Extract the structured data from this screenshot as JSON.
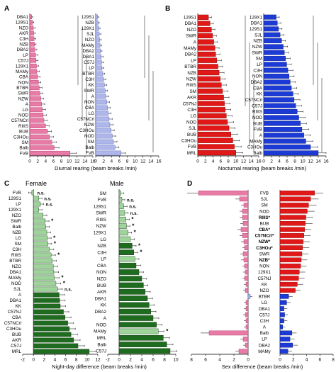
{
  "colors": {
    "pink": "#e87aa6",
    "pinkEdge": "#b03266",
    "lav": "#aeb6ea",
    "lavEdge": "#5562b8",
    "red": "#e01818",
    "redEdge": "#8a0000",
    "blue": "#1c3bd6",
    "blueEdge": "#0a1a78",
    "darkGreen": "#1f6b1f",
    "lightGreen": "#9ed49a",
    "greenEdge": "#0f3a0f"
  },
  "chart_data": [
    {
      "panel": "A",
      "type": "bar",
      "orientation": "horizontal",
      "xlabel": "Diurnal rearing (beam breaks /min)",
      "ticks": [
        0,
        2,
        4,
        6,
        8,
        10,
        12,
        14,
        16
      ],
      "series": [
        {
          "name": "Female",
          "categories": [
            "DBA1",
            "129S1",
            "NZO",
            "AKR",
            "C3H",
            "NZB",
            "DBA2",
            "LP",
            "C57J",
            "129X1",
            "MAMy",
            "CBA",
            "NON",
            "BTBR",
            "SWR",
            "NZW",
            "A",
            "LG",
            "NOD",
            "C57NCrl",
            "RIIIS",
            "BUB",
            "C3HOu",
            "SM",
            "Balb",
            "FVB"
          ],
          "values": [
            0.5,
            0.7,
            0.9,
            1.0,
            1.1,
            1.2,
            1.3,
            1.5,
            1.6,
            1.7,
            1.8,
            2.0,
            2.2,
            2.4,
            2.6,
            2.8,
            3.0,
            3.2,
            3.4,
            3.6,
            4.0,
            4.5,
            5.0,
            5.6,
            6.2,
            10.2
          ],
          "errors": [
            0.3,
            0.3,
            0.4,
            0.4,
            0.4,
            0.4,
            0.5,
            0.5,
            0.5,
            0.5,
            0.6,
            0.6,
            0.6,
            0.7,
            0.7,
            0.7,
            0.8,
            0.8,
            0.8,
            0.8,
            0.9,
            1.0,
            1.0,
            1.1,
            1.2,
            1.6
          ]
        },
        {
          "name": "Male",
          "categories": [
            "129S1",
            "NZB",
            "129X1",
            "SJL",
            "NZO",
            "MAMy",
            "DBA2",
            "DBA1",
            "C57J",
            "LP",
            "BTBR",
            "C3H",
            "KK",
            "SWR",
            "A",
            "NON",
            "CBA",
            "LG",
            "C57NCrl",
            "NZW",
            "C3HOu",
            "NOD",
            "SM",
            "Balb",
            "FVB"
          ],
          "values": [
            0.5,
            0.6,
            0.8,
            0.9,
            1.0,
            1.1,
            1.2,
            1.4,
            1.5,
            1.6,
            1.8,
            2.0,
            2.2,
            2.4,
            2.6,
            2.8,
            3.0,
            3.2,
            3.4,
            3.6,
            3.9,
            4.2,
            4.5,
            4.9,
            6.4
          ],
          "errors": [
            0.3,
            0.3,
            0.3,
            0.4,
            0.4,
            0.4,
            0.4,
            0.5,
            0.5,
            0.5,
            0.5,
            0.6,
            0.6,
            0.6,
            0.7,
            0.7,
            0.7,
            0.7,
            0.8,
            0.8,
            0.8,
            0.9,
            0.9,
            1.0,
            1.2
          ]
        }
      ]
    },
    {
      "panel": "B",
      "type": "bar",
      "orientation": "horizontal",
      "xlabel": "Nocturnal rearing (beam breaks /min)",
      "ticks": [
        0,
        2,
        4,
        6,
        8,
        10,
        12,
        14,
        16
      ],
      "series": [
        {
          "name": "Female",
          "categories": [
            "129S1",
            "DBA1",
            "NZO",
            "SWR",
            "A",
            "MAMy",
            "DBA2",
            "LP",
            "BTBR",
            "NZB",
            "NZW",
            "RIIIS",
            "SM",
            "AKR",
            "C57NJ",
            "C3H",
            "LG",
            "NOD",
            "SJL",
            "BUB",
            "C3HOu",
            "FVB",
            "MRL"
          ],
          "values": [
            2.8,
            3.2,
            3.6,
            3.9,
            4.2,
            4.5,
            4.7,
            5.0,
            5.3,
            5.6,
            5.9,
            6.2,
            6.5,
            6.8,
            7.0,
            7.2,
            7.5,
            7.8,
            8.2,
            8.7,
            9.2,
            9.6,
            10.0
          ],
          "errors": [
            0.8,
            0.9,
            0.9,
            1.0,
            1.0,
            1.1,
            1.1,
            1.2,
            1.2,
            1.3,
            1.3,
            1.3,
            1.4,
            1.4,
            1.5,
            1.5,
            1.5,
            1.6,
            1.6,
            1.7,
            1.7,
            1.8,
            1.8
          ]
        },
        {
          "name": "Male",
          "categories": [
            "129X1",
            "DBA1",
            "129S1",
            "SJL",
            "NZB",
            "NZW",
            "SWR",
            "SM",
            "LP",
            "C3H",
            "NON",
            "DBA2",
            "CBA",
            "KK",
            "C57NCrl",
            "C57J",
            "RIIIS",
            "NOD",
            "BUB",
            "FVB",
            "A",
            "MAMy",
            "C3HOu",
            "Balb"
          ],
          "values": [
            3.2,
            3.5,
            3.8,
            4.2,
            4.6,
            5.0,
            5.3,
            5.6,
            5.9,
            6.2,
            6.5,
            6.8,
            7.1,
            7.5,
            7.8,
            8.2,
            8.6,
            9.0,
            9.4,
            9.8,
            10.3,
            10.8,
            12.0,
            14.0
          ],
          "errors": [
            0.8,
            0.9,
            0.9,
            1.0,
            1.0,
            1.1,
            1.1,
            1.2,
            1.2,
            1.3,
            1.3,
            1.3,
            1.4,
            1.4,
            1.5,
            1.5,
            1.5,
            1.6,
            1.6,
            1.7,
            1.7,
            1.8,
            1.9,
            2.0
          ]
        }
      ]
    },
    {
      "panel": "C",
      "type": "bar",
      "orientation": "horizontal",
      "xlabel": "Night-day difference (beam breaks /min)",
      "ticks": [
        -2,
        0,
        2,
        4,
        6,
        8,
        10,
        12
      ],
      "series": [
        {
          "name": "Female",
          "categories": [
            "FVB",
            "129S1",
            "LP",
            "129X1",
            "NZO",
            "SWR",
            "Balb",
            "NZB",
            "LG",
            "SM",
            "C3H",
            "RIIIS",
            "BTBR",
            "NZO",
            "DBA1",
            "MAMy",
            "NOD",
            "SJL",
            "A",
            "DBA1",
            "KK",
            "C57NJ",
            "CBA",
            "C57NCrl",
            "C3HOu",
            "BUB",
            "AKR",
            "C57J",
            "MRL"
          ],
          "values": [
            -0.3,
            1.0,
            1.3,
            1.0,
            1.8,
            2.2,
            2.3,
            2.5,
            2.6,
            2.7,
            3.0,
            3.3,
            3.5,
            3.7,
            3.8,
            3.9,
            4.2,
            4.5,
            4.8,
            4.9,
            5.0,
            5.6,
            5.9,
            6.4,
            6.7,
            7.0,
            7.5,
            8.3,
            10.4
          ],
          "errors": [
            0.6,
            0.6,
            0.6,
            0.6,
            0.7,
            0.7,
            0.7,
            0.7,
            0.7,
            0.7,
            0.8,
            0.8,
            0.8,
            0.8,
            0.9,
            0.9,
            0.9,
            0.9,
            1.0,
            1.0,
            1.0,
            1.0,
            1.1,
            1.1,
            1.1,
            1.2,
            1.2,
            1.2,
            1.3
          ],
          "significance": [
            "n.s.",
            "n.s.",
            "n.s.",
            "",
            "",
            "*",
            "",
            "",
            "*",
            "*",
            "",
            "*",
            "",
            "",
            "",
            "*",
            "*",
            "n.s.",
            "",
            "",
            "",
            "",
            "",
            "",
            "",
            "",
            "",
            "",
            ""
          ],
          "shade": [
            "light",
            "light",
            "light",
            "light",
            "light",
            "light",
            "light",
            "light",
            "light",
            "light",
            "light",
            "light",
            "light",
            "light",
            "light",
            "light",
            "light",
            "light",
            "dark",
            "dark",
            "dark",
            "dark",
            "dark",
            "dark",
            "dark",
            "dark",
            "dark",
            "dark",
            "dark"
          ]
        },
        {
          "name": "Male",
          "categories": [
            "SM",
            "FVB",
            "129S1",
            "SWR",
            "RIIIS",
            "NZW",
            "129X1",
            "LG",
            "NZB",
            "C3H",
            "LP",
            "CBA",
            "NON",
            "NZO",
            "BUB",
            "AKR",
            "DBA1",
            "KK",
            "DBA2",
            "A",
            "NOD",
            "MAMy",
            "MRL",
            "Balb",
            "C57J"
          ],
          "values": [
            0.3,
            0.5,
            0.8,
            1.0,
            1.2,
            1.3,
            1.6,
            2.0,
            2.3,
            2.6,
            2.8,
            3.0,
            3.5,
            4.0,
            4.3,
            4.6,
            5.0,
            5.3,
            5.6,
            6.0,
            6.6,
            6.9,
            7.8,
            8.4,
            9.0
          ],
          "errors": [
            0.5,
            0.5,
            0.6,
            0.6,
            0.6,
            0.6,
            0.6,
            0.7,
            0.7,
            0.7,
            0.7,
            0.8,
            0.8,
            0.8,
            0.8,
            0.9,
            0.9,
            0.9,
            0.9,
            1.0,
            1.0,
            1.0,
            1.1,
            1.1,
            1.2
          ],
          "significance": [
            "",
            "n.s.",
            "n.s.",
            "n.s.",
            "*",
            "*",
            "*",
            "",
            "*",
            "*",
            "",
            "",
            "",
            "",
            "",
            "",
            "",
            "",
            "",
            "",
            "",
            "*",
            "",
            "",
            ""
          ],
          "shade": [
            "light",
            "light",
            "light",
            "light",
            "light",
            "light",
            "light",
            "light",
            "dark",
            "dark",
            "light",
            "dark",
            "dark",
            "dark",
            "dark",
            "dark",
            "dark",
            "dark",
            "dark",
            "dark",
            "dark",
            "light",
            "dark",
            "dark",
            "dark"
          ]
        }
      ]
    },
    {
      "panel": "D",
      "type": "bar",
      "orientation": "horizontal-diverging",
      "xlabel": "Sex difference (beam breaks /min)",
      "ticks_left": [
        8,
        6,
        4,
        2,
        0
      ],
      "ticks_right": [
        0,
        2,
        4,
        6,
        8
      ],
      "categories": [
        "FVB",
        "SJL",
        "SM",
        "NOD",
        "RIIIS*",
        "BUB",
        "CBA*",
        "C57NCrl*",
        "NZW*",
        "C3HOu*",
        "SWR",
        "NZB*",
        "NON",
        "129X1",
        "C57NJ",
        "KK",
        "NZO",
        "BTBR",
        "LG",
        "DBA1",
        "C57J",
        "C3H",
        "A",
        "Balb",
        "LP",
        "DBA2",
        "MAMy"
      ],
      "bold": [
        false,
        false,
        false,
        false,
        true,
        false,
        true,
        true,
        true,
        true,
        false,
        true,
        false,
        false,
        false,
        false,
        false,
        false,
        false,
        false,
        false,
        false,
        false,
        false,
        false,
        false,
        false
      ],
      "day_values": [
        -7.0,
        -1.2,
        -0.6,
        -0.8,
        -0.8,
        -0.7,
        -1.0,
        -0.8,
        -0.6,
        -0.5,
        -0.7,
        -0.6,
        -0.5,
        -0.4,
        -0.5,
        -0.3,
        -0.4,
        0.3,
        -0.3,
        -0.3,
        -0.4,
        -0.3,
        -0.3,
        -5.5,
        -0.7,
        -0.4,
        -1.3
      ],
      "day_errors": [
        1.6,
        0.6,
        0.4,
        0.4,
        0.4,
        0.4,
        0.5,
        0.4,
        0.4,
        0.3,
        0.4,
        0.4,
        0.3,
        0.3,
        0.3,
        0.3,
        0.3,
        0.3,
        0.3,
        0.3,
        0.3,
        0.3,
        0.3,
        1.2,
        0.4,
        0.3,
        0.5
      ],
      "night_values": [
        5.2,
        4.6,
        4.3,
        4.1,
        3.9,
        3.8,
        3.7,
        3.6,
        3.5,
        3.4,
        3.3,
        3.2,
        3.1,
        2.9,
        2.8,
        2.6,
        2.3,
        1.3,
        1.0,
        0.6,
        0.7,
        0.6,
        0.4,
        1.8,
        1.5,
        1.9,
        1.2
      ],
      "night_errors": [
        1.3,
        1.2,
        1.2,
        1.1,
        1.1,
        1.1,
        1.0,
        1.0,
        1.0,
        1.0,
        1.0,
        0.9,
        0.9,
        0.9,
        0.9,
        0.9,
        0.8,
        0.6,
        0.6,
        0.5,
        0.5,
        0.5,
        0.4,
        0.7,
        0.7,
        0.8,
        0.6
      ]
    }
  ],
  "panel_labels": {
    "a": "A",
    "b": "B",
    "c": "C",
    "d": "D"
  },
  "headings": {
    "female": "Female",
    "male": "Male"
  }
}
